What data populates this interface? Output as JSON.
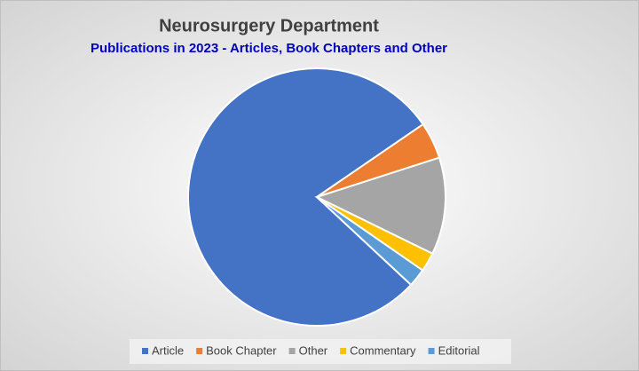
{
  "chart_data": {
    "type": "pie",
    "title": "Neurosurgery Department",
    "subtitle": "Publications in 2023 - Articles, Book Chapters and Other",
    "categories": [
      "Article",
      "Book Chapter",
      "Other",
      "Commentary",
      "Editorial"
    ],
    "values": [
      78.5,
      4.6,
      12.2,
      2.4,
      2.3
    ],
    "colors": [
      "#4472c4",
      "#ed7d31",
      "#a5a5a5",
      "#ffc000",
      "#5b9bd5"
    ],
    "legend": "bottom"
  }
}
